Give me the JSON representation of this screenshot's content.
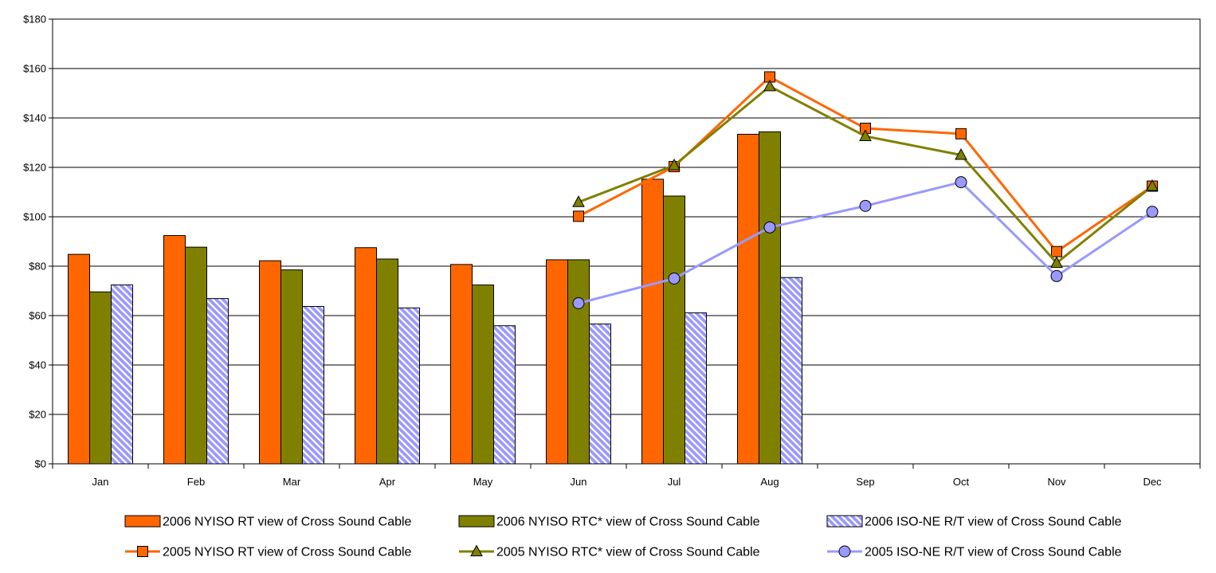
{
  "chart_data": {
    "type": "bar",
    "title": "",
    "xlabel": "",
    "ylabel": "",
    "ylim": [
      0,
      180
    ],
    "y_ticks": [
      "$0",
      "$20",
      "$40",
      "$60",
      "$80",
      "$100",
      "$120",
      "$140",
      "$160",
      "$180"
    ],
    "y_tick_values": [
      0,
      20,
      40,
      60,
      80,
      100,
      120,
      140,
      160,
      180
    ],
    "grid": true,
    "legend_position": "bottom",
    "categories": [
      "Jan",
      "Feb",
      "Mar",
      "Apr",
      "May",
      "Jun",
      "Jul",
      "Aug",
      "Sep",
      "Oct",
      "Nov",
      "Dec"
    ],
    "bar_series": [
      {
        "name": "2006 NYISO RT view of Cross Sound Cable",
        "color": "#ff6600",
        "pattern": "solid",
        "values": [
          84.8,
          92.4,
          82.2,
          87.5,
          80.7,
          82.6,
          115.2,
          133.4,
          null,
          null,
          null,
          null
        ]
      },
      {
        "name": "2006 NYISO RTC* view of Cross Sound Cable",
        "color": "#808000",
        "pattern": "solid",
        "values": [
          69.6,
          87.7,
          78.5,
          82.9,
          72.4,
          82.6,
          108.4,
          134.4,
          null,
          null,
          null,
          null
        ]
      },
      {
        "name": "2006 ISO-NE R/T view of Cross Sound Cable",
        "color": "#9999ff",
        "pattern": "hatched",
        "values": [
          72.4,
          66.9,
          63.7,
          63.1,
          55.9,
          56.6,
          61.1,
          75.4,
          null,
          null,
          null,
          null
        ]
      }
    ],
    "line_series": [
      {
        "name": "2005 NYISO RT view of Cross Sound Cable",
        "color": "#ff6600",
        "marker": "square",
        "values": [
          null,
          null,
          null,
          null,
          null,
          100.2,
          120.3,
          156.6,
          135.8,
          133.6,
          85.9,
          112.4
        ]
      },
      {
        "name": "2005 NYISO RTC* view of Cross Sound Cable",
        "color": "#808000",
        "marker": "triangle",
        "values": [
          null,
          null,
          null,
          null,
          null,
          105.9,
          120.8,
          152.8,
          132.6,
          125.0,
          81.3,
          112.4
        ]
      },
      {
        "name": "2005 ISO-NE R/T view of Cross Sound Cable",
        "color": "#9999ff",
        "marker": "circle",
        "values": [
          null,
          null,
          null,
          null,
          null,
          65.0,
          75.0,
          95.7,
          104.4,
          114.0,
          76.0,
          102.0
        ]
      }
    ]
  }
}
